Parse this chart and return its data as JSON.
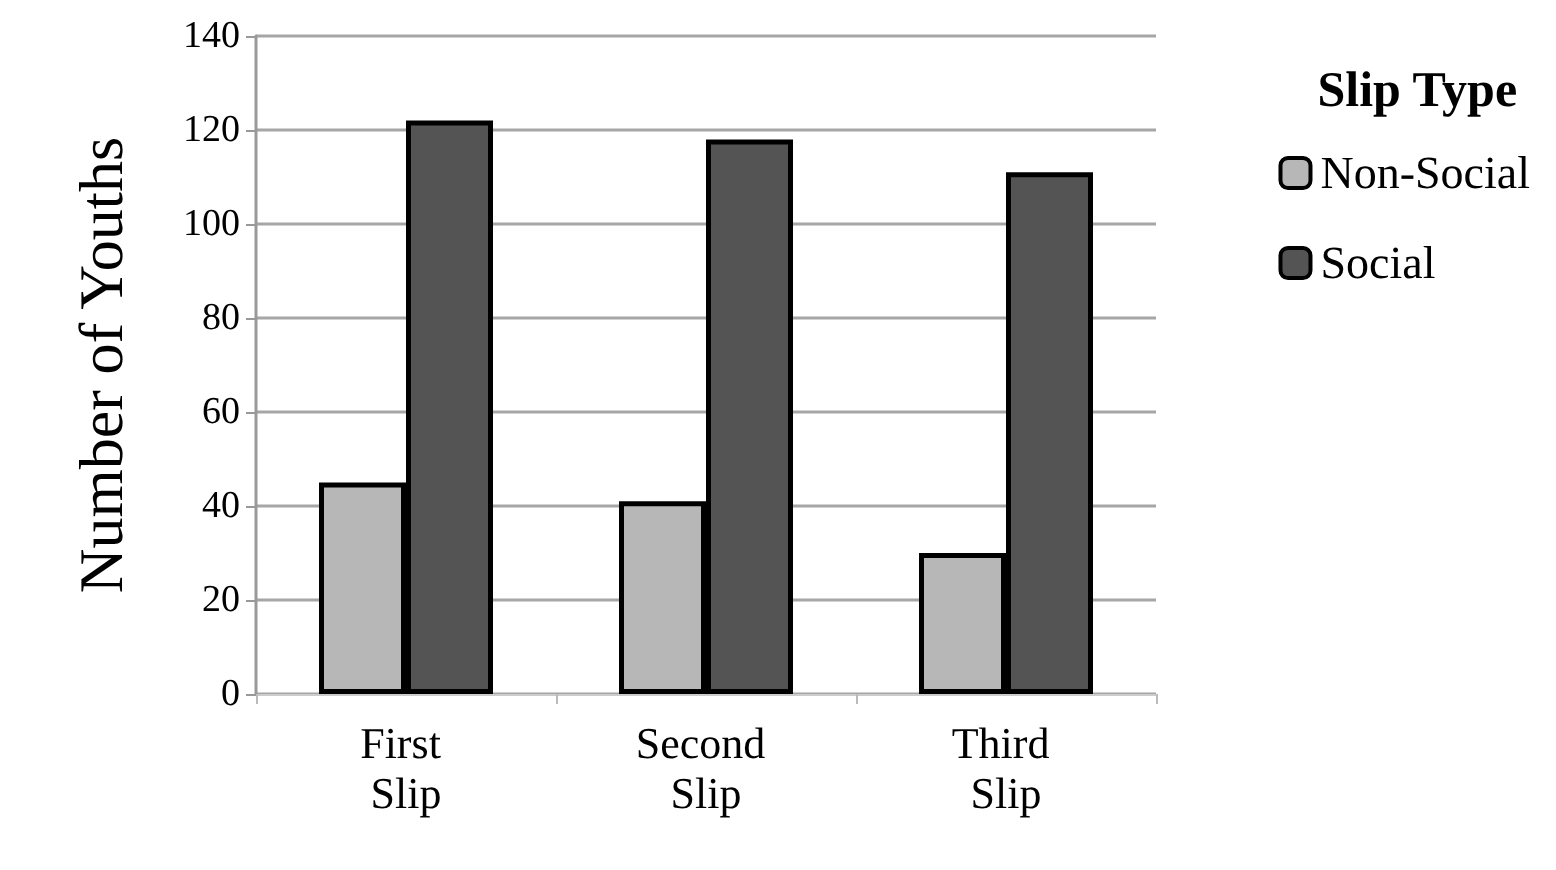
{
  "chart_data": {
    "type": "bar",
    "ylabel": "Number of Youths",
    "legend_title": "Slip Type",
    "categories": [
      "First Slip",
      "Second Slip",
      "Third Slip"
    ],
    "series": [
      {
        "name": "Non-Social",
        "color": "#b7b7b7",
        "values": [
          45,
          41,
          30
        ]
      },
      {
        "name": "Social",
        "color": "#545454",
        "values": [
          122,
          118,
          111
        ]
      }
    ],
    "ylim": [
      0,
      140
    ],
    "yticks": [
      0,
      20,
      40,
      60,
      80,
      100,
      120,
      140
    ],
    "grid": "y",
    "legend": "right"
  }
}
